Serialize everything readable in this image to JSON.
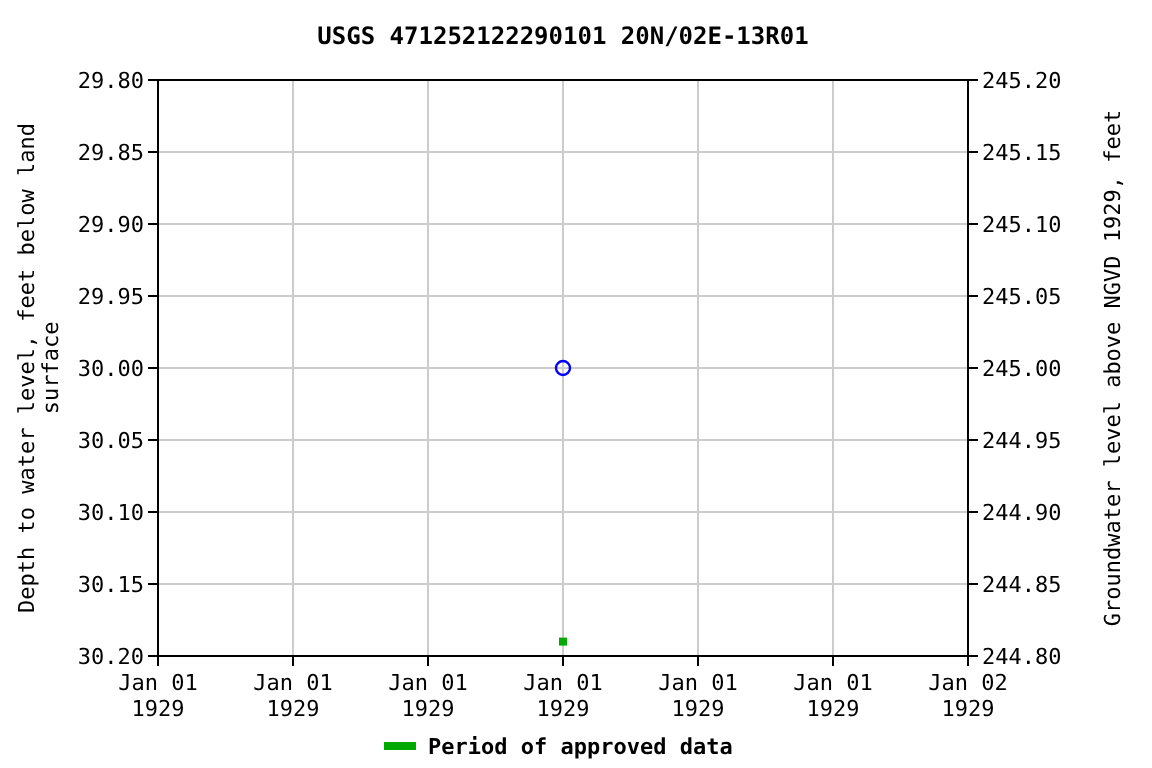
{
  "chart_data": {
    "type": "scatter",
    "title": "USGS 471252122290101 20N/02E-13R01",
    "ylabel": "Depth to water level, feet below land surface",
    "y2label": "Groundwater level above NGVD 1929, feet",
    "xlim": [
      "1929-01-01T00:00",
      "1929-01-02T00:00"
    ],
    "xticks": [
      {
        "value": "1929-01-01T00:00",
        "label": "Jan 01\n1929"
      },
      {
        "value": "1929-01-01T04:00",
        "label": "Jan 01\n1929"
      },
      {
        "value": "1929-01-01T08:00",
        "label": "Jan 01\n1929"
      },
      {
        "value": "1929-01-01T12:00",
        "label": "Jan 01\n1929"
      },
      {
        "value": "1929-01-01T16:00",
        "label": "Jan 01\n1929"
      },
      {
        "value": "1929-01-01T20:00",
        "label": "Jan 01\n1929"
      },
      {
        "value": "1929-01-02T00:00",
        "label": "Jan 02\n1929"
      }
    ],
    "ylim": [
      30.2,
      29.8
    ],
    "yticks": [
      {
        "value": 29.8,
        "label": "29.80"
      },
      {
        "value": 29.85,
        "label": "29.85"
      },
      {
        "value": 29.9,
        "label": "29.90"
      },
      {
        "value": 29.95,
        "label": "29.95"
      },
      {
        "value": 30,
        "label": "30.00"
      },
      {
        "value": 30.05,
        "label": "30.05"
      },
      {
        "value": 30.1,
        "label": "30.10"
      },
      {
        "value": 30.15,
        "label": "30.15"
      },
      {
        "value": 30.2,
        "label": "30.20"
      }
    ],
    "y2lim": [
      244.8,
      245.2
    ],
    "y2ticks": [
      {
        "value": 244.8,
        "label": "244.80"
      },
      {
        "value": 244.85,
        "label": "244.85"
      },
      {
        "value": 244.9,
        "label": "244.90"
      },
      {
        "value": 244.95,
        "label": "244.95"
      },
      {
        "value": 245,
        "label": "245.00"
      },
      {
        "value": 245.05,
        "label": "245.05"
      },
      {
        "value": 245.1,
        "label": "245.10"
      },
      {
        "value": 245.15,
        "label": "245.15"
      },
      {
        "value": 245.2,
        "label": "245.20"
      }
    ],
    "grid": true,
    "legend": "bottom",
    "series": [
      {
        "marker": "circle",
        "color": "#0000ff",
        "x": [
          "1929-01-01T12:00"
        ],
        "values": [
          30
        ]
      },
      {
        "marker": "square",
        "name": "Period of approved data",
        "color": "#00aa00",
        "x": [
          "1929-01-01T12:00"
        ],
        "values": [
          30.19
        ]
      }
    ]
  }
}
